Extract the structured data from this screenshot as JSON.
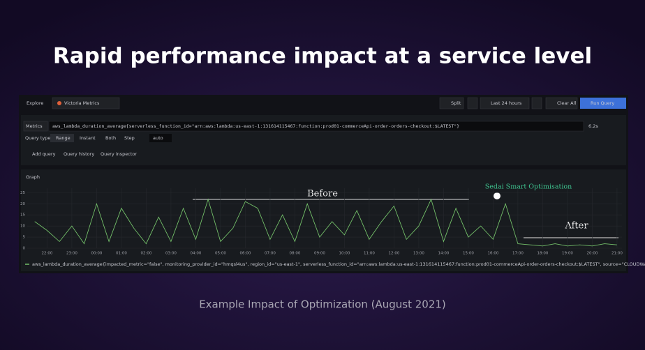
{
  "header": {
    "title": "Rapid performance impact at a service level"
  },
  "caption": "Example Impact of Optimization (August 2021)",
  "toolbar": {
    "title": "Explore",
    "datasource": "Victoria Metrics",
    "split": "Split",
    "time_range": "Last 24 hours",
    "clear": "Clear All",
    "run": "Run Query"
  },
  "query": {
    "label": "Metrics",
    "expression": "aws_lambda_duration_average{serverless_function_id=\"arn:aws:lambda:us-east-1:131614115467:function:prod01-commerceApi-order-orders-checkout:$LATEST\"}",
    "duration": "6.2s",
    "type_label": "Query type",
    "types": [
      "Range",
      "Instant",
      "Both"
    ],
    "step_label": "Step",
    "step_placeholder": "auto",
    "actions": [
      "Add query",
      "Query history",
      "Query inspector"
    ]
  },
  "chart_data": {
    "type": "line",
    "title": "Graph",
    "x": [
      -0.5,
      0,
      0.5,
      1,
      1.5,
      2,
      2.5,
      3,
      3.5,
      4,
      4.5,
      5,
      5.5,
      6,
      6.5,
      7,
      7.5,
      8,
      8.5,
      9,
      9.5,
      10,
      10.5,
      11,
      11.5,
      12,
      12.5,
      13,
      13.5,
      14,
      14.5,
      15,
      15.5,
      16,
      16.5,
      17,
      17.5,
      18,
      18.5,
      19,
      19.5,
      20,
      20.5,
      21,
      21.5,
      22,
      22.5,
      23
    ],
    "series": [
      {
        "name": "aws_lambda_duration_average{impacted_metric=\"false\", monitoring_provider_id=\"hmqsl4us\", region_id=\"us-east-1\", serverless_function_id=\"arn:aws:lambda:us-east-1:131614115467:function:prod01-commerceApi-order-orders-checkout:$LATEST\", source=\"CLOUDWATCH\"}",
        "color": "#73bf69",
        "values": [
          12,
          8,
          3,
          10,
          2,
          20,
          3,
          18,
          9,
          2,
          14,
          3,
          18,
          4,
          22,
          3,
          9,
          21,
          18,
          4,
          15,
          3,
          20,
          5,
          12,
          6,
          17,
          4,
          12,
          19,
          4,
          10,
          22,
          3,
          18,
          5,
          10,
          4,
          20,
          2,
          1.5,
          1,
          2,
          1,
          1.5,
          1,
          2,
          1.5
        ]
      }
    ],
    "xlim": [
      -0.8,
      23.2
    ],
    "ylim": [
      0,
      27
    ],
    "xticks": [
      {
        "value": 0,
        "label": "22:00"
      },
      {
        "value": 1,
        "label": "23:00"
      },
      {
        "value": 2,
        "label": "00:00"
      },
      {
        "value": 3,
        "label": "01:00"
      },
      {
        "value": 4,
        "label": "02:00"
      },
      {
        "value": 5,
        "label": "03:00"
      },
      {
        "value": 6,
        "label": "04:00"
      },
      {
        "value": 7,
        "label": "05:00"
      },
      {
        "value": 8,
        "label": "06:00"
      },
      {
        "value": 9,
        "label": "07:00"
      },
      {
        "value": 10,
        "label": "08:00"
      },
      {
        "value": 11,
        "label": "09:00"
      },
      {
        "value": 12,
        "label": "10:00"
      },
      {
        "value": 13,
        "label": "11:00"
      },
      {
        "value": 14,
        "label": "12:00"
      },
      {
        "value": 15,
        "label": "13:00"
      },
      {
        "value": 16,
        "label": "14:00"
      },
      {
        "value": 17,
        "label": "15:00"
      },
      {
        "value": 18,
        "label": "16:00"
      },
      {
        "value": 19,
        "label": "17:00"
      },
      {
        "value": 20,
        "label": "18:00"
      },
      {
        "value": 21,
        "label": "19:00"
      },
      {
        "value": 22,
        "label": "20:00"
      },
      {
        "value": 23,
        "label": "21:00"
      }
    ],
    "yticks": [
      0,
      5,
      10,
      15,
      20,
      25
    ],
    "grid": true,
    "annotations": [
      "Before",
      "Sedai Smart Optimisation",
      "After"
    ]
  }
}
